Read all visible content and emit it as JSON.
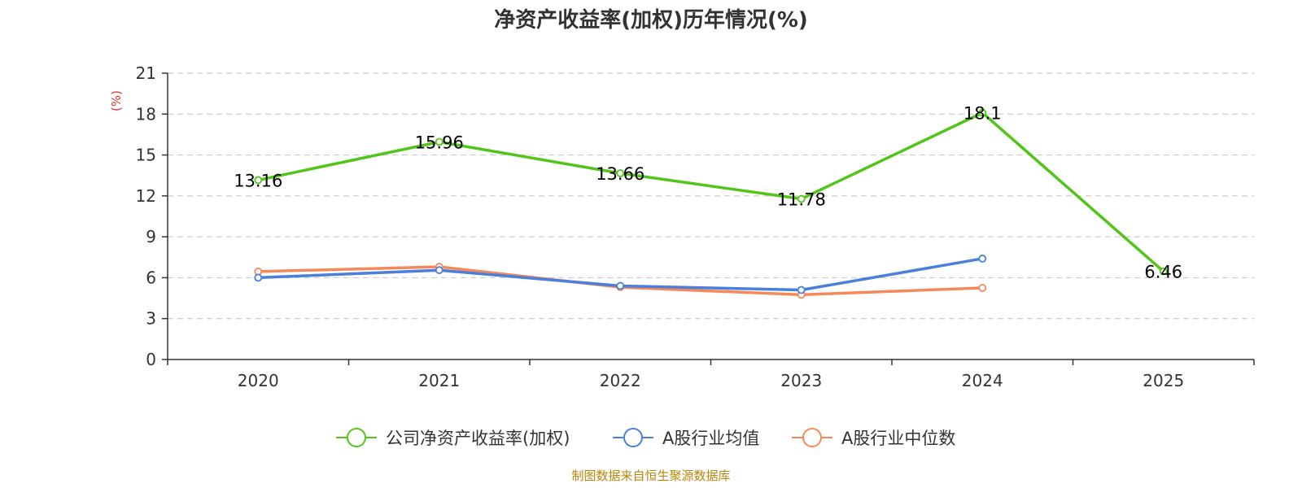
{
  "chart_data": {
    "type": "line",
    "title": "净资产收益率(加权)历年情况(%)",
    "ylabel": "(%)",
    "categories": [
      "2020",
      "2021",
      "2022",
      "2023",
      "2024",
      "2025"
    ],
    "ylim": [
      0,
      21
    ],
    "yticks": [
      0,
      3,
      6,
      9,
      12,
      15,
      18,
      21
    ],
    "ytick_labels": [
      "0",
      "3",
      "6",
      "9",
      "12",
      "15",
      "18",
      "21"
    ],
    "grid": true,
    "legend_position": "bottom",
    "series": [
      {
        "name": "公司净资产收益率(加权)",
        "color": "#52c41a",
        "values": [
          13.16,
          15.96,
          13.66,
          11.78,
          18.1,
          6.46
        ],
        "labels": [
          "13.16",
          "15.96",
          "13.66",
          "11.78",
          "18.1",
          "6.46"
        ]
      },
      {
        "name": "A股行业均值",
        "color": "#4a7fdc",
        "values": [
          6.0,
          6.55,
          5.4,
          5.1,
          7.4,
          null
        ]
      },
      {
        "name": "A股行业中位数",
        "color": "#f5895a",
        "values": [
          6.45,
          6.8,
          5.3,
          4.75,
          5.25,
          null
        ]
      }
    ],
    "unit_color": "#e8312a"
  },
  "footer": {
    "source_text": "制图数据来自恒生聚源数据库",
    "source_color": "#b8860b"
  }
}
